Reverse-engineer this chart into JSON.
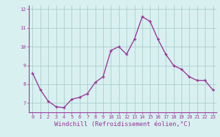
{
  "x": [
    0,
    1,
    2,
    3,
    4,
    5,
    6,
    7,
    8,
    9,
    10,
    11,
    12,
    13,
    14,
    15,
    16,
    17,
    18,
    19,
    20,
    21,
    22,
    23
  ],
  "y": [
    8.6,
    7.7,
    7.1,
    6.8,
    6.75,
    7.2,
    7.3,
    7.5,
    8.1,
    8.4,
    9.8,
    10.0,
    9.6,
    10.4,
    11.6,
    11.35,
    10.4,
    9.6,
    9.0,
    8.8,
    8.4,
    8.2,
    8.2,
    7.7
  ],
  "line_color": "#993399",
  "marker": "+",
  "bg_color": "#d8f0f0",
  "grid_color": "#aacccc",
  "xlabel": "Windchill (Refroidissement éolien,°C)",
  "xlabel_color": "#993399",
  "tick_color": "#993399",
  "ylim": [
    6.5,
    12.2
  ],
  "xlim": [
    -0.5,
    23.5
  ],
  "yticks": [
    7,
    8,
    9,
    10,
    11,
    12
  ],
  "xticks": [
    0,
    1,
    2,
    3,
    4,
    5,
    6,
    7,
    8,
    9,
    10,
    11,
    12,
    13,
    14,
    15,
    16,
    17,
    18,
    19,
    20,
    21,
    22,
    23
  ]
}
